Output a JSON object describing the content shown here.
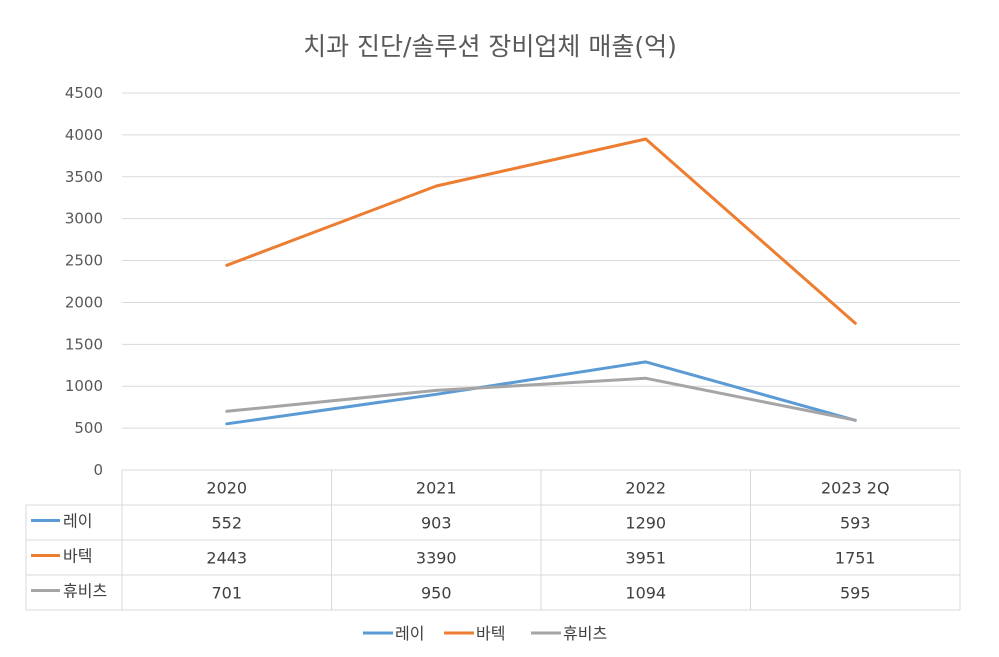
{
  "chart_data": {
    "type": "line",
    "title": "치과 진단/솔루션 장비업체 매출(억)",
    "categories": [
      "2020",
      "2021",
      "2022",
      "2023  2Q"
    ],
    "y_ticks": [
      "0",
      "500",
      "1000",
      "1500",
      "2000",
      "2500",
      "3000",
      "3500",
      "4000",
      "4500"
    ],
    "ylim": [
      0,
      4500
    ],
    "grid": true,
    "legend_position": "bottom",
    "data_table": true,
    "series": [
      {
        "name": "레이",
        "color": "#5b9bd5",
        "values": [
          552,
          903,
          1290,
          593
        ],
        "labels": [
          "552",
          "903",
          "1290",
          "593"
        ]
      },
      {
        "name": "바텍",
        "color": "#ed7d31",
        "values": [
          2443,
          3390,
          3951,
          1751
        ],
        "labels": [
          "2443",
          "3390",
          "3951",
          "1751"
        ]
      },
      {
        "name": "휴비츠",
        "color": "#a5a5a5",
        "values": [
          701,
          950,
          1094,
          595
        ],
        "labels": [
          "701",
          "950",
          "1094",
          "595"
        ]
      }
    ]
  }
}
